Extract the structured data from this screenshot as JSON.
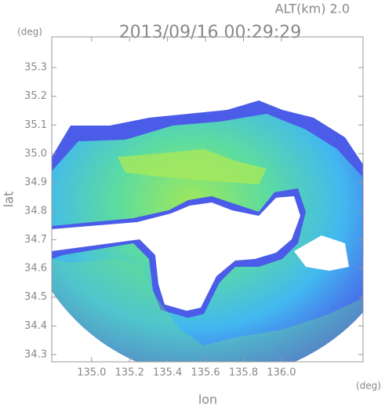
{
  "header": {
    "altitude": "ALT(km) 2.0",
    "title": "2013/09/16 00:29:29",
    "y_unit": "(deg)",
    "x_unit": "(deg)"
  },
  "chart_data": {
    "type": "radar-map",
    "xlabel": "lon",
    "ylabel": "lat",
    "xlim": [
      134.79,
      136.43
    ],
    "ylim": [
      34.275,
      35.407
    ],
    "xticks": [
      {
        "value": 135,
        "label": "135.0"
      },
      135.2,
      135.4,
      135.6,
      135.8,
      {
        "value": 136,
        "label": "136.0"
      }
    ],
    "yticks": [
      34.3,
      34.4,
      34.5,
      34.6,
      34.7,
      34.8,
      34.9,
      {
        "value": 35,
        "label": "35.0"
      },
      35.1,
      35.2,
      35.3
    ]
  }
}
